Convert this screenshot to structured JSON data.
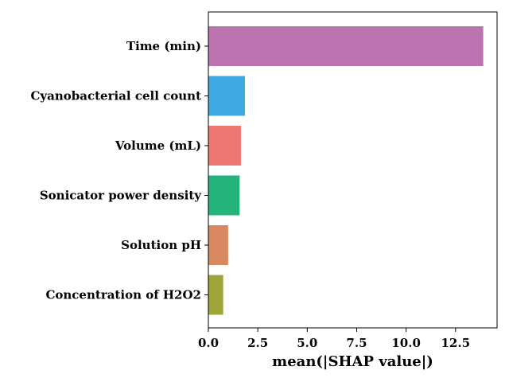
{
  "chart_data": {
    "type": "bar",
    "orientation": "horizontal",
    "title": "",
    "xlabel": "mean(|SHAP value|)",
    "ylabel": "",
    "xlim": [
      0,
      14.6
    ],
    "xticks": [
      0.0,
      2.5,
      5.0,
      7.5,
      10.0,
      12.5
    ],
    "xtick_labels": [
      "0.0",
      "2.5",
      "5.0",
      "7.5",
      "10.0",
      "12.5"
    ],
    "grid": false,
    "categories": [
      "Time (min)",
      "Cyanobacterial cell count",
      "Volume (mL)",
      "Sonicator power density",
      "Solution pH",
      "Concentration of H2O2"
    ],
    "values": [
      13.9,
      1.85,
      1.65,
      1.58,
      1.0,
      0.75
    ],
    "colors": [
      "#bc74b0",
      "#3ea8e0",
      "#f07873",
      "#24b47b",
      "#d98960",
      "#a0a53a"
    ]
  }
}
